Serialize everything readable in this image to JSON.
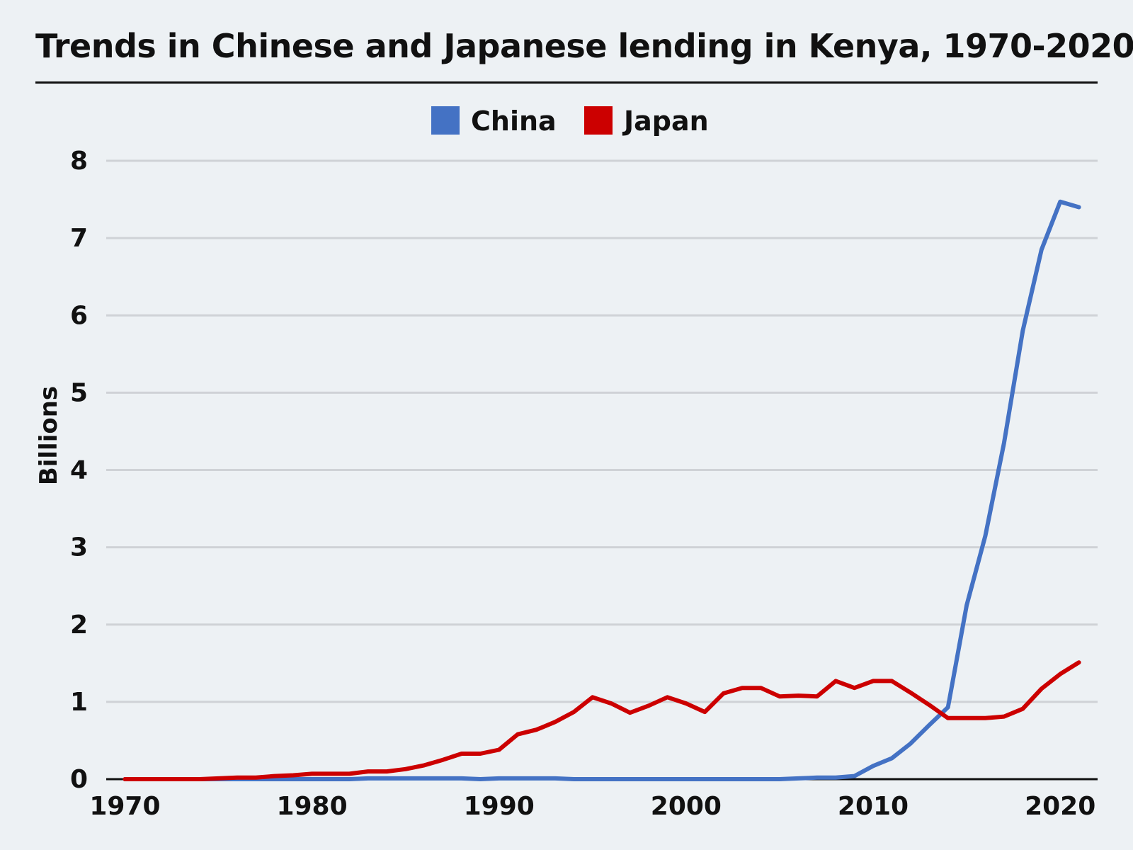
{
  "chart_data": {
    "type": "line",
    "title": "Trends in Chinese and Japanese lending in Kenya, 1970-2020",
    "xlabel": "",
    "ylabel": "Billions",
    "xlim": [
      1969,
      2022
    ],
    "ylim": [
      0,
      8
    ],
    "x_ticks": [
      1970,
      1980,
      1990,
      2000,
      2010,
      2020
    ],
    "y_ticks": [
      0,
      1,
      2,
      3,
      4,
      5,
      6,
      7,
      8
    ],
    "grid": true,
    "legend_position": "top-center",
    "x": [
      1970,
      1971,
      1972,
      1973,
      1974,
      1975,
      1976,
      1977,
      1978,
      1979,
      1980,
      1981,
      1982,
      1983,
      1984,
      1985,
      1986,
      1987,
      1988,
      1989,
      1990,
      1991,
      1992,
      1993,
      1994,
      1995,
      1996,
      1997,
      1998,
      1999,
      2000,
      2001,
      2002,
      2003,
      2004,
      2005,
      2006,
      2007,
      2008,
      2009,
      2010,
      2011,
      2012,
      2013,
      2014,
      2015,
      2016,
      2017,
      2018,
      2019,
      2020,
      2021
    ],
    "series": [
      {
        "name": "China",
        "color": "#4472c4",
        "values": [
          0,
          0,
          0,
          0,
          0,
          0,
          0,
          0,
          0,
          0,
          0,
          0,
          0,
          0.01,
          0.01,
          0.01,
          0.01,
          0.01,
          0.01,
          0,
          0.01,
          0.01,
          0.01,
          0.01,
          0,
          0,
          0,
          0,
          0,
          0,
          0,
          0,
          0,
          0,
          0,
          0,
          0.01,
          0.02,
          0.02,
          0.04,
          0.17,
          0.27,
          0.46,
          0.7,
          0.93,
          2.25,
          3.15,
          4.35,
          5.8,
          6.85,
          7.47,
          7.4
        ]
      },
      {
        "name": "Japan",
        "color": "#cc0000",
        "values": [
          0,
          0,
          0,
          0,
          0,
          0.01,
          0.02,
          0.02,
          0.04,
          0.05,
          0.07,
          0.07,
          0.07,
          0.1,
          0.1,
          0.13,
          0.18,
          0.25,
          0.33,
          0.33,
          0.38,
          0.58,
          0.64,
          0.74,
          0.87,
          1.06,
          0.98,
          0.86,
          0.95,
          1.06,
          0.98,
          0.87,
          1.11,
          1.18,
          1.18,
          1.07,
          1.08,
          1.07,
          1.27,
          1.18,
          1.27,
          1.27,
          1.12,
          0.96,
          0.79,
          0.79,
          0.79,
          0.81,
          0.91,
          1.17,
          1.36,
          1.51
        ]
      }
    ]
  }
}
